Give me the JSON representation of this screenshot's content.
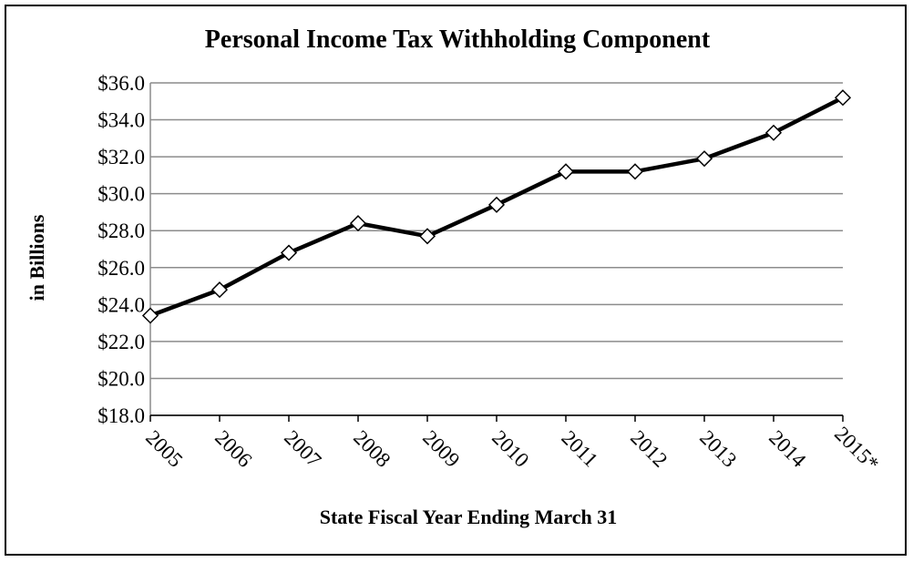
{
  "chart_data": {
    "type": "line",
    "title": "Personal Income Tax Withholding Component",
    "xlabel": "State Fiscal Year Ending March 31",
    "ylabel": "in  Billions",
    "categories": [
      "2005",
      "2006",
      "2007",
      "2008",
      "2009",
      "2010",
      "2011",
      "2012",
      "2013",
      "2014",
      "2015*"
    ],
    "series": [
      {
        "values": [
          23.4,
          24.8,
          26.8,
          28.4,
          27.7,
          29.4,
          31.2,
          31.2,
          31.9,
          33.3,
          35.2
        ]
      }
    ],
    "ylim": [
      18.0,
      36.0
    ],
    "yticks": [
      "$18.0",
      "$20.0",
      "$22.0",
      "$24.0",
      "$26.0",
      "$28.0",
      "$30.0",
      "$32.0",
      "$34.0",
      "$36.0"
    ],
    "grid": true,
    "line_color": "#000000",
    "marker": "diamond",
    "marker_fill": "#ffffff"
  }
}
